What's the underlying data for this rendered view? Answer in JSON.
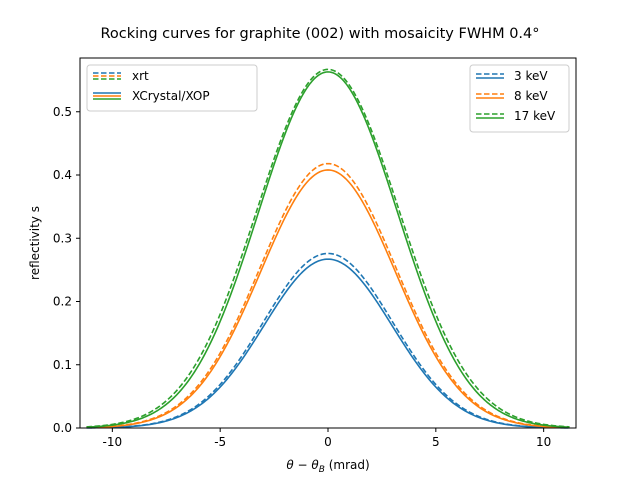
{
  "chart_data": {
    "type": "line",
    "title": "Rocking curves for graphite (002) with mosaicity FWHM 0.4°",
    "xlabel_main": "θ − θ",
    "xlabel_sub": "B",
    "xlabel_unit": " (mrad)",
    "ylabel": "reflectivity s",
    "xlim": [
      -11.5,
      11.5
    ],
    "ylim": [
      0.0,
      0.585
    ],
    "xticks": [
      -10,
      -5,
      0,
      5,
      10
    ],
    "xtick_labels": [
      "-10",
      "-5",
      "0",
      "5",
      "10"
    ],
    "yticks": [
      0.0,
      0.1,
      0.2,
      0.3,
      0.4,
      0.5
    ],
    "ytick_labels": [
      "0.0",
      "0.1",
      "0.2",
      "0.3",
      "0.4",
      "0.5"
    ],
    "x_range": [
      -11.2,
      11.2
    ],
    "series": [
      {
        "name": "3 keV",
        "color": "#1f77b4",
        "xrt_peak": 0.276,
        "xop_peak": 0.267,
        "xrt_sigma": 3.0,
        "xop_sigma": 2.97
      },
      {
        "name": "8 keV",
        "color": "#ff7f0e",
        "xrt_peak": 0.418,
        "xop_peak": 0.408,
        "xrt_sigma": 3.15,
        "xop_sigma": 3.12
      },
      {
        "name": "17 keV",
        "color": "#2ca02c",
        "xrt_peak": 0.567,
        "xop_peak": 0.563,
        "xrt_sigma": 3.3,
        "xop_sigma": 3.22
      }
    ],
    "style_legend": {
      "placement": "top-left",
      "entries": [
        {
          "label": "xrt",
          "style": "dashed"
        },
        {
          "label": "XCrystal/XOP",
          "style": "solid"
        }
      ]
    },
    "energy_legend": {
      "placement": "top-right"
    }
  }
}
